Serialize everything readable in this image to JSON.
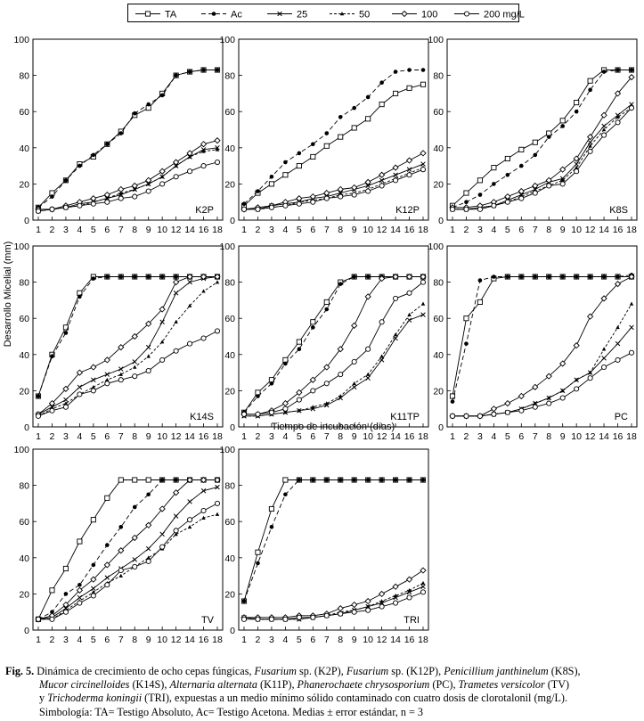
{
  "legend": {
    "entries": [
      {
        "key": "TA",
        "label": "TA"
      },
      {
        "key": "Ac",
        "label": "Ac"
      },
      {
        "key": "d25",
        "label": "25"
      },
      {
        "key": "d50",
        "label": "50"
      },
      {
        "key": "d100",
        "label": "100"
      },
      {
        "key": "d200",
        "label": "200 mg/L"
      }
    ]
  },
  "axes": {
    "ylabel": "Desarrollo Micelial (mm)",
    "xlabel": "Tiempo de incubación (días)",
    "yticks": [
      0,
      20,
      40,
      60,
      80,
      100
    ],
    "xticks": [
      "1",
      "2",
      "3",
      "4",
      "5",
      "6",
      "7",
      "8",
      "9",
      "10",
      "12",
      "14",
      "16",
      "18"
    ]
  },
  "chart_data": [
    {
      "type": "line",
      "panel": "K2P",
      "title": "K2P",
      "categories": [
        "1",
        "2",
        "3",
        "4",
        "5",
        "6",
        "7",
        "8",
        "9",
        "10",
        "12",
        "14",
        "16",
        "18"
      ],
      "ylim": [
        0,
        100
      ],
      "series": [
        {
          "name": "TA",
          "values": [
            7,
            15,
            22,
            31,
            35,
            42,
            49,
            58,
            62,
            70,
            80,
            82,
            83,
            83
          ]
        },
        {
          "name": "Ac",
          "values": [
            7,
            13,
            22,
            30,
            36,
            42,
            48,
            59,
            64,
            69,
            80,
            82,
            83,
            83
          ]
        },
        {
          "name": "25",
          "values": [
            5,
            6,
            7,
            9,
            10,
            12,
            14,
            17,
            20,
            24,
            30,
            35,
            39,
            40
          ]
        },
        {
          "name": "50",
          "values": [
            5,
            6,
            7,
            8,
            10,
            12,
            15,
            17,
            20,
            24,
            30,
            35,
            38,
            39
          ]
        },
        {
          "name": "100",
          "values": [
            6,
            6,
            8,
            10,
            12,
            14,
            17,
            19,
            22,
            27,
            32,
            37,
            42,
            44
          ]
        },
        {
          "name": "200 mg/L",
          "values": [
            5,
            6,
            7,
            8,
            9,
            10,
            12,
            13,
            16,
            20,
            24,
            27,
            30,
            32
          ]
        }
      ]
    },
    {
      "type": "line",
      "panel": "K12P",
      "title": "K12P",
      "categories": [
        "1",
        "2",
        "3",
        "4",
        "5",
        "6",
        "7",
        "8",
        "9",
        "10",
        "12",
        "14",
        "16",
        "18"
      ],
      "ylim": [
        0,
        100
      ],
      "series": [
        {
          "name": "TA",
          "values": [
            8,
            15,
            20,
            25,
            30,
            35,
            41,
            46,
            51,
            56,
            64,
            70,
            73,
            75
          ]
        },
        {
          "name": "Ac",
          "values": [
            9,
            16,
            24,
            32,
            37,
            42,
            48,
            57,
            62,
            68,
            76,
            82,
            83,
            83
          ]
        },
        {
          "name": "25",
          "values": [
            6,
            6,
            8,
            9,
            10,
            12,
            13,
            15,
            17,
            19,
            22,
            25,
            28,
            31
          ]
        },
        {
          "name": "50",
          "values": [
            6,
            6,
            7,
            8,
            10,
            11,
            12,
            14,
            15,
            17,
            20,
            23,
            26,
            29
          ]
        },
        {
          "name": "100",
          "values": [
            6,
            7,
            8,
            10,
            12,
            13,
            15,
            17,
            18,
            21,
            25,
            29,
            33,
            37
          ]
        },
        {
          "name": "200 mg/L",
          "values": [
            6,
            6,
            7,
            8,
            9,
            10,
            12,
            13,
            14,
            16,
            19,
            22,
            25,
            28
          ]
        }
      ]
    },
    {
      "type": "line",
      "panel": "K8S",
      "title": "K8S",
      "categories": [
        "1",
        "2",
        "3",
        "4",
        "5",
        "6",
        "7",
        "8",
        "9",
        "10",
        "12",
        "14",
        "16",
        "18"
      ],
      "ylim": [
        0,
        100
      ],
      "series": [
        {
          "name": "TA",
          "values": [
            8,
            15,
            22,
            29,
            34,
            39,
            43,
            48,
            55,
            65,
            77,
            83,
            83,
            83
          ]
        },
        {
          "name": "Ac",
          "values": [
            7,
            10,
            14,
            20,
            25,
            30,
            36,
            46,
            52,
            60,
            72,
            82,
            83,
            83
          ]
        },
        {
          "name": "25",
          "values": [
            6,
            6,
            7,
            8,
            11,
            14,
            17,
            21,
            23,
            31,
            43,
            52,
            58,
            64
          ]
        },
        {
          "name": "50",
          "values": [
            6,
            6,
            7,
            8,
            10,
            13,
            16,
            19,
            22,
            29,
            41,
            50,
            57,
            62
          ]
        },
        {
          "name": "100",
          "values": [
            7,
            7,
            8,
            10,
            13,
            16,
            19,
            22,
            28,
            34,
            46,
            58,
            70,
            79
          ]
        },
        {
          "name": "200 mg/L",
          "values": [
            6,
            6,
            6,
            8,
            10,
            12,
            15,
            19,
            20,
            27,
            38,
            47,
            54,
            62
          ]
        }
      ]
    },
    {
      "type": "line",
      "panel": "K14S",
      "title": "K14S",
      "categories": [
        "1",
        "2",
        "3",
        "4",
        "5",
        "6",
        "7",
        "8",
        "9",
        "10",
        "12",
        "14",
        "16",
        "18"
      ],
      "ylim": [
        0,
        100
      ],
      "series": [
        {
          "name": "TA",
          "values": [
            17,
            40,
            55,
            74,
            83,
            83,
            83,
            83,
            83,
            83,
            83,
            83,
            83,
            83
          ]
        },
        {
          "name": "Ac",
          "values": [
            17,
            39,
            52,
            72,
            82,
            83,
            83,
            83,
            83,
            83,
            83,
            83,
            83,
            83
          ]
        },
        {
          "name": "25",
          "values": [
            7,
            11,
            15,
            22,
            26,
            29,
            32,
            36,
            44,
            58,
            74,
            80,
            82,
            83
          ]
        },
        {
          "name": "50",
          "values": [
            6,
            10,
            13,
            18,
            22,
            26,
            29,
            33,
            39,
            47,
            58,
            67,
            75,
            80
          ]
        },
        {
          "name": "100",
          "values": [
            7,
            13,
            21,
            30,
            33,
            37,
            44,
            50,
            57,
            65,
            80,
            83,
            83,
            83
          ]
        },
        {
          "name": "200 mg/L",
          "values": [
            6,
            9,
            11,
            18,
            20,
            24,
            26,
            28,
            31,
            37,
            42,
            46,
            49,
            53
          ]
        }
      ]
    },
    {
      "type": "line",
      "panel": "K11TP",
      "title": "K11TP",
      "categories": [
        "1",
        "2",
        "3",
        "4",
        "5",
        "6",
        "7",
        "8",
        "9",
        "10",
        "12",
        "14",
        "16",
        "18"
      ],
      "ylim": [
        0,
        100
      ],
      "series": [
        {
          "name": "TA",
          "values": [
            8,
            19,
            26,
            37,
            47,
            58,
            69,
            80,
            83,
            83,
            83,
            83,
            83,
            83
          ]
        },
        {
          "name": "Ac",
          "values": [
            8,
            17,
            24,
            35,
            43,
            55,
            65,
            79,
            83,
            83,
            83,
            83,
            83,
            83
          ]
        },
        {
          "name": "25",
          "values": [
            6,
            6,
            7,
            8,
            9,
            10,
            12,
            16,
            22,
            27,
            37,
            49,
            59,
            62
          ]
        },
        {
          "name": "50",
          "values": [
            6,
            6,
            7,
            8,
            9,
            11,
            13,
            17,
            24,
            29,
            39,
            51,
            62,
            68
          ]
        },
        {
          "name": "100",
          "values": [
            7,
            7,
            9,
            13,
            19,
            26,
            33,
            43,
            56,
            72,
            82,
            83,
            83,
            83
          ]
        },
        {
          "name": "200 mg/L",
          "values": [
            7,
            7,
            8,
            10,
            15,
            20,
            24,
            29,
            36,
            43,
            58,
            71,
            74,
            80
          ]
        }
      ]
    },
    {
      "type": "line",
      "panel": "PC",
      "title": "PC",
      "categories": [
        "1",
        "2",
        "3",
        "4",
        "5",
        "6",
        "7",
        "8",
        "9",
        "10",
        "12",
        "14",
        "16",
        "18"
      ],
      "ylim": [
        0,
        100
      ],
      "series": [
        {
          "name": "TA",
          "values": [
            17,
            60,
            69,
            82,
            83,
            83,
            83,
            83,
            83,
            83,
            83,
            83,
            83,
            83
          ]
        },
        {
          "name": "Ac",
          "values": [
            14,
            46,
            81,
            83,
            83,
            83,
            83,
            83,
            83,
            83,
            83,
            83,
            83,
            84
          ]
        },
        {
          "name": "25",
          "values": [
            6,
            6,
            6,
            7,
            8,
            10,
            13,
            16,
            20,
            26,
            30,
            38,
            46,
            55
          ]
        },
        {
          "name": "50",
          "values": [
            6,
            6,
            6,
            7,
            8,
            10,
            13,
            16,
            20,
            26,
            30,
            43,
            55,
            68
          ]
        },
        {
          "name": "100",
          "values": [
            6,
            6,
            6,
            10,
            13,
            17,
            22,
            28,
            35,
            45,
            61,
            71,
            79,
            83
          ]
        },
        {
          "name": "200 mg/L",
          "values": [
            6,
            6,
            6,
            7,
            8,
            9,
            11,
            13,
            16,
            21,
            27,
            33,
            37,
            41
          ]
        }
      ]
    },
    {
      "type": "line",
      "panel": "TV",
      "title": "TV",
      "categories": [
        "1",
        "2",
        "3",
        "4",
        "5",
        "6",
        "7",
        "8",
        "9",
        "10",
        "12",
        "14",
        "16",
        "18"
      ],
      "ylim": [
        0,
        100
      ],
      "series": [
        {
          "name": "TA",
          "values": [
            6,
            22,
            34,
            49,
            61,
            73,
            83,
            83,
            83,
            83,
            83,
            83,
            83,
            83
          ]
        },
        {
          "name": "Ac",
          "values": [
            6,
            10,
            20,
            25,
            36,
            47,
            57,
            68,
            75,
            83,
            83,
            83,
            83,
            83
          ]
        },
        {
          "name": "25",
          "values": [
            6,
            7,
            12,
            18,
            23,
            29,
            34,
            39,
            45,
            53,
            63,
            71,
            77,
            79
          ]
        },
        {
          "name": "50",
          "values": [
            6,
            6,
            11,
            16,
            21,
            26,
            30,
            35,
            40,
            45,
            53,
            57,
            62,
            64
          ]
        },
        {
          "name": "100",
          "values": [
            6,
            8,
            14,
            22,
            28,
            36,
            44,
            51,
            58,
            67,
            76,
            83,
            83,
            83
          ]
        },
        {
          "name": "200 mg/L",
          "values": [
            6,
            6,
            10,
            15,
            19,
            25,
            33,
            35,
            38,
            46,
            55,
            61,
            66,
            70
          ]
        }
      ]
    },
    {
      "type": "line",
      "panel": "TRI",
      "title": "TRI",
      "categories": [
        "1",
        "2",
        "3",
        "4",
        "5",
        "6",
        "7",
        "8",
        "9",
        "10",
        "12",
        "14",
        "16",
        "18"
      ],
      "ylim": [
        0,
        100
      ],
      "series": [
        {
          "name": "TA",
          "values": [
            16,
            43,
            67,
            83,
            83,
            83,
            83,
            83,
            83,
            83,
            83,
            83,
            83,
            83
          ]
        },
        {
          "name": "Ac",
          "values": [
            16,
            37,
            57,
            75,
            83,
            83,
            83,
            83,
            83,
            83,
            83,
            83,
            83,
            83
          ]
        },
        {
          "name": "25",
          "values": [
            7,
            6,
            6,
            6,
            6,
            7,
            8,
            9,
            11,
            13,
            15,
            18,
            21,
            24
          ]
        },
        {
          "name": "50",
          "values": [
            7,
            6,
            6,
            6,
            6,
            7,
            8,
            10,
            11,
            13,
            16,
            19,
            22,
            26
          ]
        },
        {
          "name": "100",
          "values": [
            7,
            7,
            7,
            7,
            8,
            8,
            9,
            12,
            14,
            16,
            20,
            24,
            28,
            33
          ]
        },
        {
          "name": "200 mg/L",
          "values": [
            6,
            6,
            6,
            6,
            7,
            7,
            8,
            9,
            10,
            11,
            13,
            15,
            18,
            21
          ]
        }
      ]
    }
  ],
  "caption": {
    "label": "Fig. 5.",
    "p1": "Dinámica de crecimiento de ocho cepas fúngicas, ",
    "s1": "Fusarium",
    "p2": " sp. (K2P), ",
    "s2": "Fusarium",
    "p3": " sp. (K12P), ",
    "s3": "Penicillium janthinelum",
    "p4": " (K8S),",
    "s4": "Mucor circinelloides",
    "p5": " (K14S), ",
    "s5": "Alternaria alternata",
    "p6": " (K11P), ",
    "s6": "Phanerochaete chrysosporium",
    "p7": " (PC), ",
    "s7": "Trametes versicolor",
    "p8": " (TV)",
    "p9": "y ",
    "s8": "Trichoderma koningii",
    "p10": " (TRI), expuestas a un medio mínimo sólido contaminado con cuatro dosis de clorotalonil (mg/L).",
    "p11": "Simbología: TA= Testigo Absoluto, Ac= Testigo Acetona. Medias ± error estándar, n = 3"
  }
}
